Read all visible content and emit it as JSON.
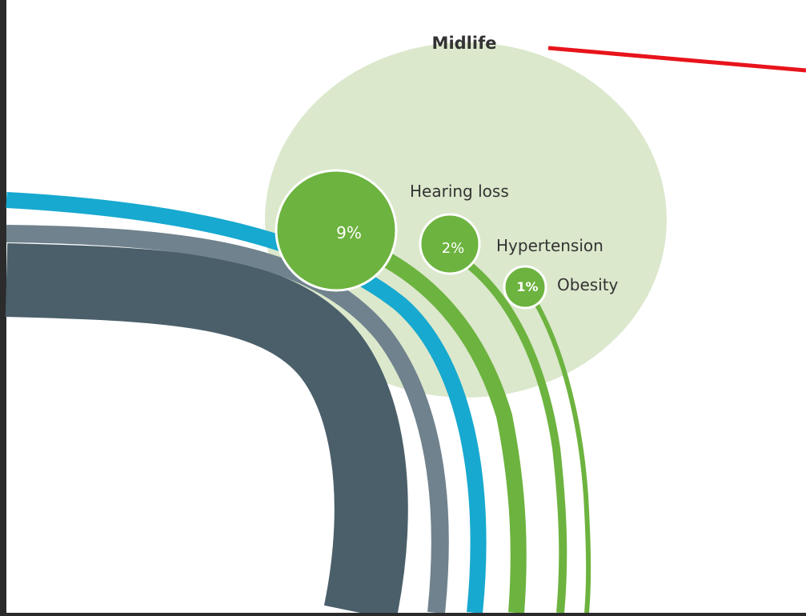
{
  "title": "Midlife",
  "factors": [
    {
      "label": "Hearing loss",
      "percent": "9%"
    },
    {
      "label": "Hypertension",
      "percent": "2%"
    },
    {
      "label": "Obesity",
      "percent": "1%"
    }
  ],
  "colors": {
    "frame": "#2b2b2b",
    "background": "#ffffff",
    "midlife_bubble": "#dbe8cc",
    "factor_green": "#6db33f",
    "band_cyan": "#17a9cf",
    "band_gray": "#6f828d",
    "band_dark": "#4a5f6a",
    "pointer_arrow": "#e8141b"
  }
}
